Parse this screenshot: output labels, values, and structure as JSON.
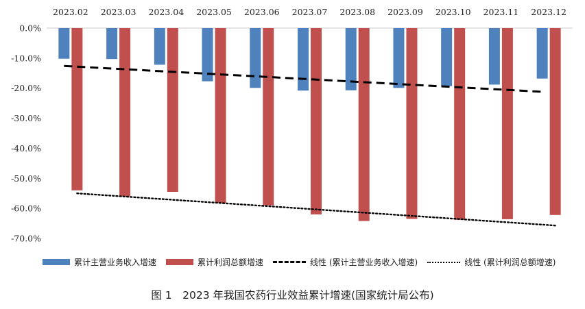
{
  "chart_data": {
    "type": "bar",
    "title": "",
    "xlabel": "",
    "ylabel": "",
    "ylim": [
      -70,
      0
    ],
    "yticks": [
      0,
      -10,
      -20,
      -30,
      -40,
      -50,
      -60,
      -70
    ],
    "ytick_labels": [
      "0.0%",
      "-10.0%",
      "-20.0%",
      "-30.0%",
      "-40.0%",
      "-50.0%",
      "-60.0%",
      "-70.0%"
    ],
    "categories": [
      "2023.02",
      "2023.03",
      "2023.04",
      "2023.05",
      "2023.06",
      "2023.07",
      "2023.08",
      "2023.09",
      "2023.10",
      "2023.11",
      "2023.12"
    ],
    "category_axis_position": "top",
    "grid": false,
    "series": [
      {
        "name": "累计主营业务收入增速",
        "color": "#4f81bd",
        "values": [
          -10.2,
          -10.3,
          -12.2,
          -17.7,
          -19.9,
          -20.8,
          -20.7,
          -19.9,
          -19.3,
          -18.8,
          -16.8
        ]
      },
      {
        "name": "累计利润总额增速",
        "color": "#c0504d",
        "values": [
          -54.0,
          -56.0,
          -54.5,
          -58.2,
          -59.0,
          -62.0,
          -64.2,
          -63.5,
          -63.8,
          -63.6,
          -62.2
        ]
      }
    ],
    "trendlines": [
      {
        "name": "线性 (累计主营业务收入增速)",
        "style": "dashed",
        "color": "#000000",
        "start": -12.6,
        "end": -21.2
      },
      {
        "name": "线性 (累计利润总额增速)",
        "style": "dotted",
        "color": "#000000",
        "start": -55.0,
        "end": -65.7
      }
    ],
    "legend_position": "bottom"
  },
  "caption": "图 1　2023 年我国农药行业效益累计增速(国家统计局公布)"
}
